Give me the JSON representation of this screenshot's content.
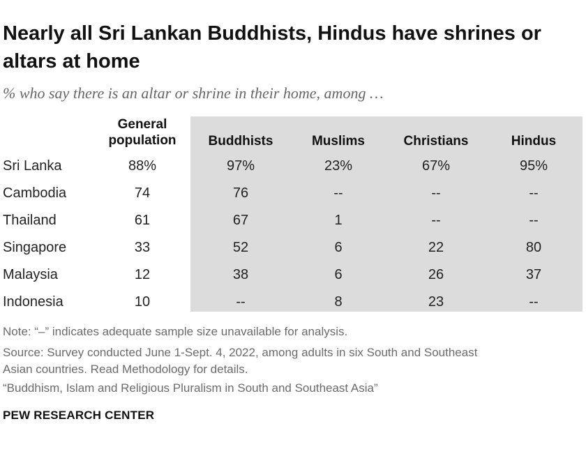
{
  "title": "Nearly all Sri Lankan Buddhists, Hindus have shrines or altars at home",
  "subtitle": "% who say there is an altar or shrine in their home, among …",
  "chart_data": {
    "type": "table",
    "columns": [
      "General population",
      "Buddhists",
      "Muslims",
      "Christians",
      "Hindus"
    ],
    "rows": [
      {
        "label": "Sri Lanka",
        "values": [
          "88%",
          "97%",
          "23%",
          "67%",
          "95%"
        ]
      },
      {
        "label": "Cambodia",
        "values": [
          "74",
          "76",
          "--",
          "--",
          "--"
        ]
      },
      {
        "label": "Thailand",
        "values": [
          "61",
          "67",
          "1",
          "--",
          "--"
        ]
      },
      {
        "label": "Singapore",
        "values": [
          "33",
          "52",
          "6",
          "22",
          "80"
        ]
      },
      {
        "label": "Malaysia",
        "values": [
          "12",
          "38",
          "6",
          "26",
          "37"
        ]
      },
      {
        "label": "Indonesia",
        "values": [
          "10",
          "--",
          "8",
          "23",
          "--"
        ]
      }
    ],
    "shaded_columns": [
      "Buddhists",
      "Muslims",
      "Christians",
      "Hindus"
    ],
    "shade_color": "#dcdcdc"
  },
  "notes": {
    "note": "Note: “–” indicates adequate sample size unavailable for analysis.",
    "source_1": "Source: Survey conducted June 1-Sept. 4, 2022, among adults in six South and Southeast",
    "source_2": "Asian countries. Read Methodology for details.",
    "report": "“Buddhism, Islam and Religious Pluralism in South and Southeast Asia”"
  },
  "brand": "PEW RESEARCH CENTER"
}
